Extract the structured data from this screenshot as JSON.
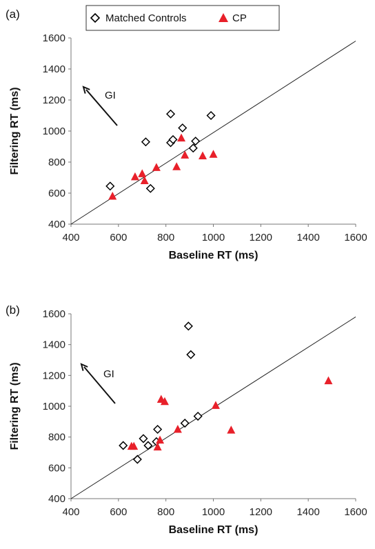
{
  "legend": {
    "entries": [
      {
        "label": "Matched Controls",
        "marker": "diamond-open",
        "color": "#000000"
      },
      {
        "label": "CP",
        "marker": "triangle-filled",
        "color": "#e8202a"
      }
    ]
  },
  "chart_data": [
    {
      "type": "scatter",
      "panel_label": "(a)",
      "xlabel": "Baseline RT (ms)",
      "ylabel": "Filtering RT (ms)",
      "xlim": [
        400,
        1600
      ],
      "ylim": [
        400,
        1600
      ],
      "x_ticks": [
        400,
        600,
        800,
        1000,
        1200,
        1400,
        1600
      ],
      "y_ticks": [
        400,
        600,
        800,
        1000,
        1200,
        1400,
        1600
      ],
      "reference_line": "identity",
      "arrow_label": "GI",
      "grid": false,
      "legend_position": "top",
      "series": [
        {
          "name": "Matched Controls",
          "marker": "diamond-open",
          "color": "#000000",
          "points": [
            [
              565,
              645
            ],
            [
              715,
              930
            ],
            [
              735,
              630
            ],
            [
              820,
              1110
            ],
            [
              820,
              925
            ],
            [
              830,
              945
            ],
            [
              870,
              1020
            ],
            [
              915,
              890
            ],
            [
              925,
              935
            ],
            [
              990,
              1100
            ]
          ]
        },
        {
          "name": "CP",
          "marker": "triangle-filled",
          "color": "#e8202a",
          "points": [
            [
              575,
              580
            ],
            [
              670,
              705
            ],
            [
              700,
              725
            ],
            [
              710,
              680
            ],
            [
              760,
              765
            ],
            [
              845,
              770
            ],
            [
              865,
              955
            ],
            [
              880,
              845
            ],
            [
              955,
              840
            ],
            [
              1000,
              850
            ]
          ]
        }
      ]
    },
    {
      "type": "scatter",
      "panel_label": "(b)",
      "xlabel": "Baseline RT (ms)",
      "ylabel": "Filtering RT (ms)",
      "xlim": [
        400,
        1600
      ],
      "ylim": [
        400,
        1600
      ],
      "x_ticks": [
        400,
        600,
        800,
        1000,
        1200,
        1400,
        1600
      ],
      "y_ticks": [
        400,
        600,
        800,
        1000,
        1200,
        1400,
        1600
      ],
      "reference_line": "identity",
      "arrow_label": "GI",
      "grid": false,
      "series": [
        {
          "name": "Matched Controls",
          "marker": "diamond-open",
          "color": "#000000",
          "points": [
            [
              620,
              745
            ],
            [
              680,
              655
            ],
            [
              705,
              790
            ],
            [
              725,
              745
            ],
            [
              765,
              850
            ],
            [
              760,
              770
            ],
            [
              880,
              890
            ],
            [
              895,
              1520
            ],
            [
              905,
              1335
            ],
            [
              935,
              935
            ]
          ]
        },
        {
          "name": "CP",
          "marker": "triangle-filled",
          "color": "#e8202a",
          "points": [
            [
              655,
              740
            ],
            [
              665,
              740
            ],
            [
              765,
              735
            ],
            [
              775,
              780
            ],
            [
              780,
              1045
            ],
            [
              795,
              1030
            ],
            [
              850,
              850
            ],
            [
              1010,
              1005
            ],
            [
              1075,
              845
            ],
            [
              1485,
              1165
            ]
          ]
        }
      ]
    }
  ]
}
